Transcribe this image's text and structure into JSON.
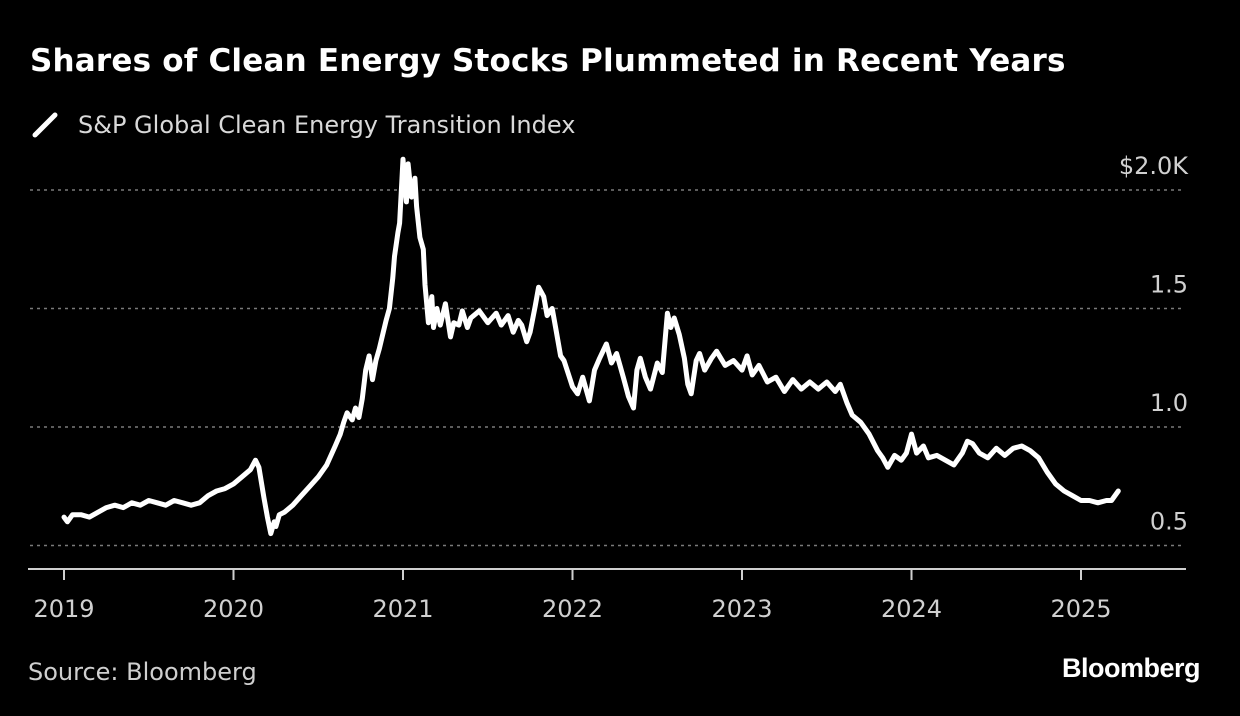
{
  "chart_data": {
    "type": "line",
    "title": "Shares of Clean Energy Stocks Plummeted in Recent Years",
    "legend": [
      "S&P Global Clean Energy Transition Index"
    ],
    "xlabel": "",
    "ylabel": "",
    "source": "Source: Bloomberg",
    "brand": "Bloomberg",
    "x_ticks": [
      "2019",
      "2020",
      "2021",
      "2022",
      "2023",
      "2024",
      "2025"
    ],
    "y_ticks": [
      {
        "value": 2.0,
        "label": "$2.0K"
      },
      {
        "value": 1.5,
        "label": "1.5"
      },
      {
        "value": 1.0,
        "label": "1.0"
      },
      {
        "value": 0.5,
        "label": "0.5"
      }
    ],
    "ylim": [
      0.4,
      2.2
    ],
    "xlim": [
      2018.8,
      2025.88
    ],
    "grid": true,
    "series": [
      {
        "name": "S&P Global Clean Energy Transition Index",
        "color": "#ffffff",
        "x": [
          2019.0,
          2019.02,
          2019.05,
          2019.1,
          2019.15,
          2019.2,
          2019.25,
          2019.3,
          2019.35,
          2019.4,
          2019.45,
          2019.5,
          2019.55,
          2019.6,
          2019.65,
          2019.7,
          2019.75,
          2019.8,
          2019.85,
          2019.9,
          2019.95,
          2020.0,
          2020.05,
          2020.1,
          2020.13,
          2020.15,
          2020.18,
          2020.2,
          2020.22,
          2020.24,
          2020.25,
          2020.27,
          2020.3,
          2020.35,
          2020.4,
          2020.45,
          2020.5,
          2020.55,
          2020.6,
          2020.63,
          2020.65,
          2020.67,
          2020.7,
          2020.72,
          2020.74,
          2020.76,
          2020.78,
          2020.8,
          2020.82,
          2020.84,
          2020.86,
          2020.88,
          2020.9,
          2020.92,
          2020.94,
          2020.95,
          2020.97,
          2020.98,
          2021.0,
          2021.02,
          2021.03,
          2021.05,
          2021.07,
          2021.08,
          2021.1,
          2021.12,
          2021.13,
          2021.15,
          2021.17,
          2021.18,
          2021.2,
          2021.22,
          2021.25,
          2021.28,
          2021.3,
          2021.33,
          2021.35,
          2021.38,
          2021.4,
          2021.45,
          2021.5,
          2021.55,
          2021.58,
          2021.62,
          2021.65,
          2021.68,
          2021.7,
          2021.73,
          2021.75,
          2021.78,
          2021.8,
          2021.83,
          2021.85,
          2021.88,
          2021.9,
          2021.93,
          2021.95,
          2022.0,
          2022.03,
          2022.06,
          2022.1,
          2022.13,
          2022.16,
          2022.2,
          2022.23,
          2022.26,
          2022.3,
          2022.33,
          2022.36,
          2022.38,
          2022.4,
          2022.43,
          2022.46,
          2022.5,
          2022.53,
          2022.56,
          2022.58,
          2022.6,
          2022.63,
          2022.66,
          2022.68,
          2022.7,
          2022.73,
          2022.75,
          2022.78,
          2022.82,
          2022.85,
          2022.9,
          2022.95,
          2023.0,
          2023.03,
          2023.06,
          2023.1,
          2023.15,
          2023.2,
          2023.25,
          2023.3,
          2023.35,
          2023.4,
          2023.45,
          2023.5,
          2023.55,
          2023.58,
          2023.62,
          2023.65,
          2023.7,
          2023.75,
          2023.8,
          2023.83,
          2023.86,
          2023.9,
          2023.94,
          2023.97,
          2024.0,
          2024.03,
          2024.07,
          2024.1,
          2024.15,
          2024.2,
          2024.25,
          2024.3,
          2024.33,
          2024.36,
          2024.4,
          2024.45,
          2024.5,
          2024.55,
          2024.6,
          2024.65,
          2024.7,
          2024.75,
          2024.8,
          2024.85,
          2024.9,
          2024.95,
          2025.0,
          2025.05,
          2025.1,
          2025.15,
          2025.18,
          2025.22
        ],
        "values": [
          0.62,
          0.6,
          0.63,
          0.63,
          0.62,
          0.64,
          0.66,
          0.67,
          0.66,
          0.68,
          0.67,
          0.69,
          0.68,
          0.67,
          0.69,
          0.68,
          0.67,
          0.68,
          0.71,
          0.73,
          0.74,
          0.76,
          0.79,
          0.82,
          0.86,
          0.83,
          0.7,
          0.62,
          0.55,
          0.6,
          0.58,
          0.63,
          0.64,
          0.67,
          0.71,
          0.75,
          0.79,
          0.84,
          0.92,
          0.97,
          1.02,
          1.06,
          1.03,
          1.08,
          1.04,
          1.12,
          1.24,
          1.3,
          1.2,
          1.28,
          1.33,
          1.39,
          1.45,
          1.5,
          1.63,
          1.72,
          1.82,
          1.86,
          2.13,
          1.95,
          2.11,
          1.97,
          2.05,
          1.93,
          1.8,
          1.75,
          1.6,
          1.44,
          1.55,
          1.42,
          1.5,
          1.43,
          1.52,
          1.38,
          1.44,
          1.43,
          1.49,
          1.42,
          1.46,
          1.49,
          1.44,
          1.48,
          1.43,
          1.47,
          1.4,
          1.45,
          1.43,
          1.36,
          1.4,
          1.51,
          1.59,
          1.55,
          1.47,
          1.5,
          1.42,
          1.3,
          1.28,
          1.17,
          1.14,
          1.21,
          1.11,
          1.24,
          1.29,
          1.35,
          1.27,
          1.31,
          1.21,
          1.13,
          1.08,
          1.24,
          1.29,
          1.21,
          1.16,
          1.27,
          1.23,
          1.48,
          1.42,
          1.46,
          1.39,
          1.29,
          1.18,
          1.14,
          1.28,
          1.31,
          1.24,
          1.29,
          1.32,
          1.26,
          1.28,
          1.24,
          1.3,
          1.22,
          1.26,
          1.19,
          1.21,
          1.15,
          1.2,
          1.16,
          1.19,
          1.16,
          1.19,
          1.15,
          1.18,
          1.1,
          1.05,
          1.02,
          0.97,
          0.9,
          0.87,
          0.83,
          0.88,
          0.86,
          0.89,
          0.97,
          0.89,
          0.92,
          0.87,
          0.88,
          0.86,
          0.84,
          0.89,
          0.94,
          0.93,
          0.89,
          0.87,
          0.91,
          0.88,
          0.91,
          0.92,
          0.9,
          0.87,
          0.81,
          0.76,
          0.73,
          0.71,
          0.69,
          0.69,
          0.68,
          0.69,
          0.69,
          0.73
        ]
      }
    ]
  }
}
